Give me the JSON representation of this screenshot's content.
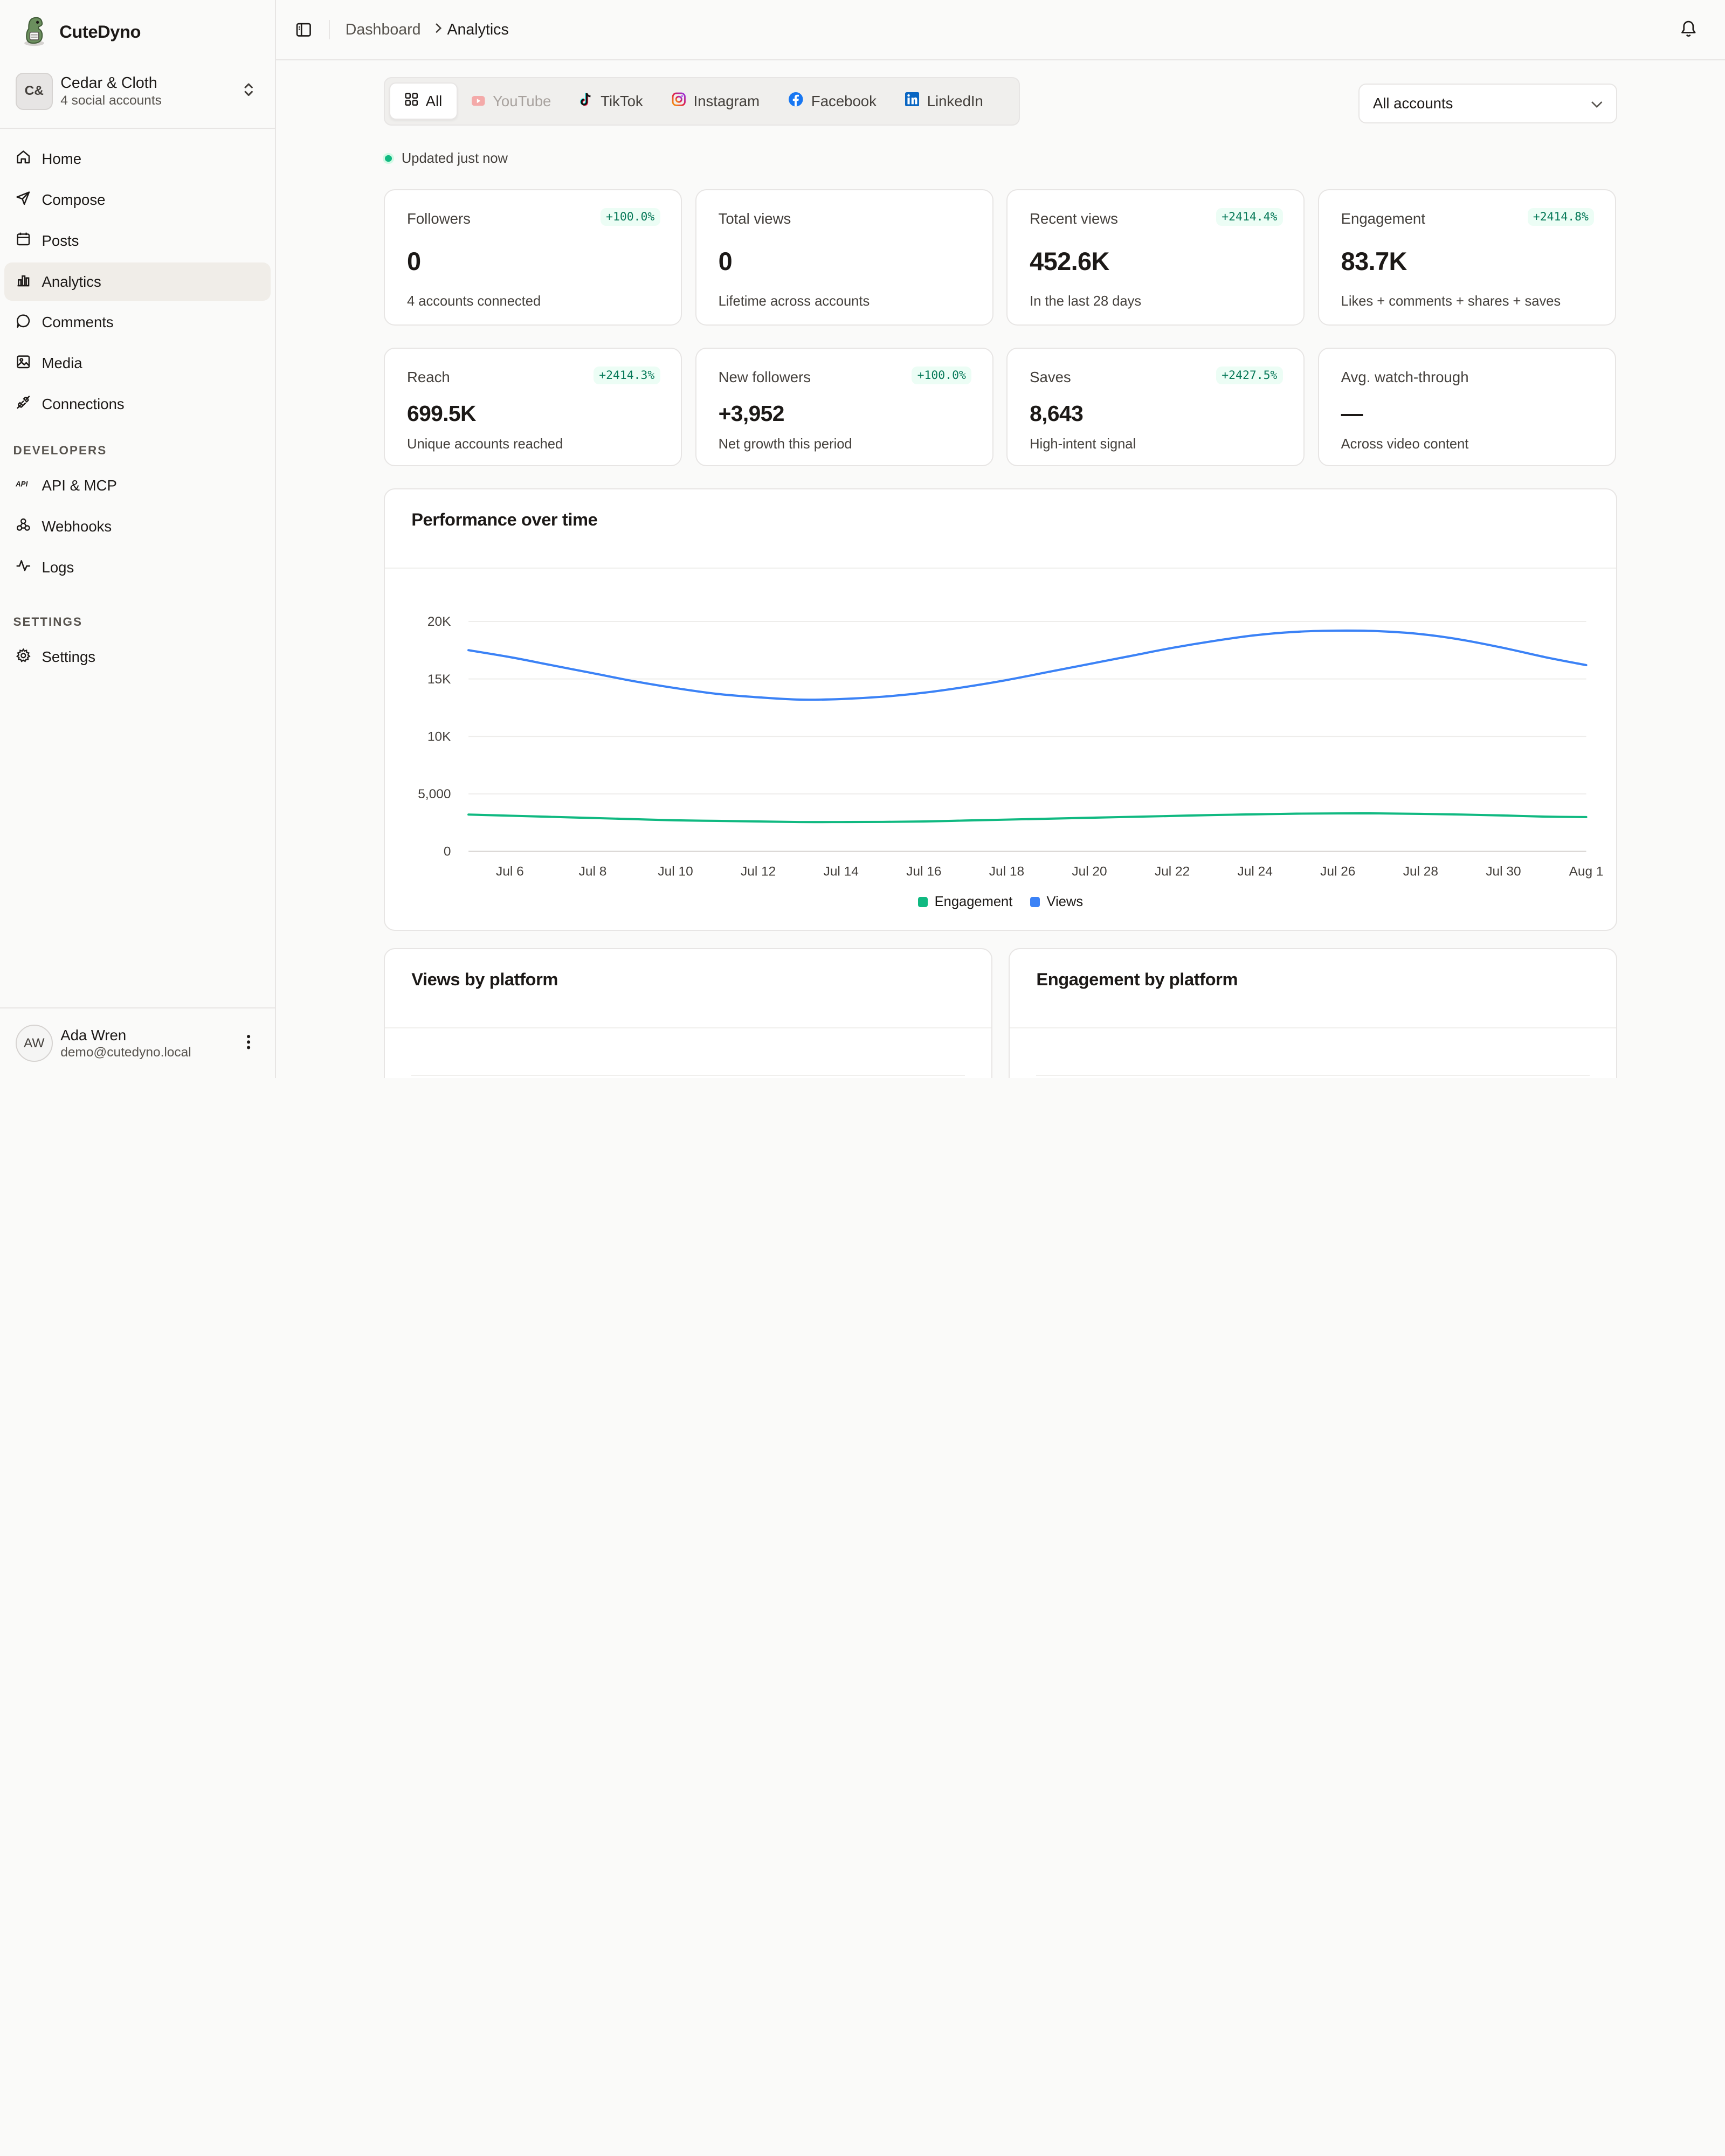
{
  "brand": {
    "name": "CuteDyno"
  },
  "workspace": {
    "initials": "C&",
    "name": "Cedar & Cloth",
    "subtitle": "4 social accounts"
  },
  "nav": {
    "items": [
      {
        "label": "Home",
        "icon": "home-icon"
      },
      {
        "label": "Compose",
        "icon": "send-icon"
      },
      {
        "label": "Posts",
        "icon": "calendar-icon"
      },
      {
        "label": "Analytics",
        "icon": "bar-chart-icon",
        "active": true
      },
      {
        "label": "Comments",
        "icon": "message-circle-icon"
      },
      {
        "label": "Media",
        "icon": "image-icon"
      },
      {
        "label": "Connections",
        "icon": "plug-icon"
      }
    ],
    "developers_label": "DEVELOPERS",
    "developer_items": [
      {
        "label": "API & MCP",
        "icon": "api-icon"
      },
      {
        "label": "Webhooks",
        "icon": "webhook-icon"
      },
      {
        "label": "Logs",
        "icon": "activity-icon"
      }
    ],
    "settings_label": "SETTINGS",
    "settings_items": [
      {
        "label": "Settings",
        "icon": "gear-icon"
      }
    ]
  },
  "user": {
    "initials": "AW",
    "name": "Ada Wren",
    "email": "demo@cutedyno.local"
  },
  "breadcrumb": {
    "parent": "Dashboard",
    "current": "Analytics"
  },
  "filters": {
    "tabs": [
      {
        "label": "All",
        "icon": "grid-icon",
        "active": true
      },
      {
        "label": "YouTube",
        "icon": "youtube-icon",
        "disabled": true
      },
      {
        "label": "TikTok",
        "icon": "tiktok-icon"
      },
      {
        "label": "Instagram",
        "icon": "instagram-icon"
      },
      {
        "label": "Facebook",
        "icon": "facebook-icon"
      },
      {
        "label": "LinkedIn",
        "icon": "linkedin-icon"
      }
    ],
    "account_select": {
      "value": "All accounts"
    }
  },
  "status": {
    "updated": "Updated just now"
  },
  "stats": [
    {
      "title": "Followers",
      "badge": "+100.0%",
      "value": "0",
      "sub": "4 accounts connected"
    },
    {
      "title": "Total views",
      "badge": "",
      "value": "0",
      "sub": "Lifetime across accounts"
    },
    {
      "title": "Recent views",
      "badge": "+2414.4%",
      "value": "452.6K",
      "sub": "In the last 28 days"
    },
    {
      "title": "Engagement",
      "badge": "+2414.8%",
      "value": "83.7K",
      "sub": "Likes + comments + shares + saves"
    },
    {
      "title": "Reach",
      "badge": "+2414.3%",
      "value": "699.5K",
      "sub": "Unique accounts reached"
    },
    {
      "title": "New followers",
      "badge": "+100.0%",
      "value": "+3,952",
      "sub": "Net growth this period"
    },
    {
      "title": "Saves",
      "badge": "+2427.5%",
      "value": "8,643",
      "sub": "High-intent signal"
    },
    {
      "title": "Avg. watch-through",
      "badge": "",
      "value": "—",
      "sub": "Across video content"
    }
  ],
  "performance": {
    "title": "Performance over time"
  },
  "views_by_platform": {
    "title": "Views by platform"
  },
  "engagement_by_platform": {
    "title": "Engagement by platform"
  },
  "colors": {
    "views": "#3b82f6",
    "engagement": "#10b981",
    "accent_bg": "#f0ede8"
  },
  "chart_data": {
    "type": "line",
    "title": "Performance over time",
    "x": [
      "Jul 5",
      "Jul 6",
      "Jul 7",
      "Jul 8",
      "Jul 9",
      "Jul 10",
      "Jul 11",
      "Jul 12",
      "Jul 13",
      "Jul 14",
      "Jul 15",
      "Jul 16",
      "Jul 17",
      "Jul 18",
      "Jul 19",
      "Jul 20",
      "Jul 21",
      "Jul 22",
      "Jul 23",
      "Jul 24",
      "Jul 25",
      "Jul 26",
      "Jul 27",
      "Jul 28",
      "Jul 29",
      "Jul 30",
      "Jul 31",
      "Aug 1"
    ],
    "x_tick_labels": [
      "Jul 6",
      "Jul 8",
      "Jul 10",
      "Jul 12",
      "Jul 14",
      "Jul 16",
      "Jul 18",
      "Jul 20",
      "Jul 22",
      "Jul 24",
      "Jul 26",
      "Jul 28",
      "Jul 30",
      "Aug 1"
    ],
    "y_tick_labels": [
      "0",
      "5,000",
      "10K",
      "15K",
      "20K"
    ],
    "ylim": [
      0,
      20000
    ],
    "grid": true,
    "legend": "bottom",
    "series": [
      {
        "name": "Engagement",
        "color": "#10b981",
        "values": [
          3200,
          3100,
          3000,
          2900,
          2800,
          2700,
          2650,
          2600,
          2550,
          2550,
          2560,
          2600,
          2680,
          2760,
          2840,
          2920,
          3000,
          3080,
          3160,
          3220,
          3280,
          3300,
          3300,
          3260,
          3200,
          3120,
          3020,
          2980
        ]
      },
      {
        "name": "Views",
        "color": "#3b82f6",
        "values": [
          17500,
          16900,
          16200,
          15500,
          14800,
          14200,
          13700,
          13400,
          13200,
          13250,
          13450,
          13800,
          14300,
          14900,
          15600,
          16300,
          17000,
          17700,
          18300,
          18800,
          19100,
          19200,
          19150,
          18900,
          18400,
          17700,
          16900,
          16200
        ]
      }
    ]
  }
}
